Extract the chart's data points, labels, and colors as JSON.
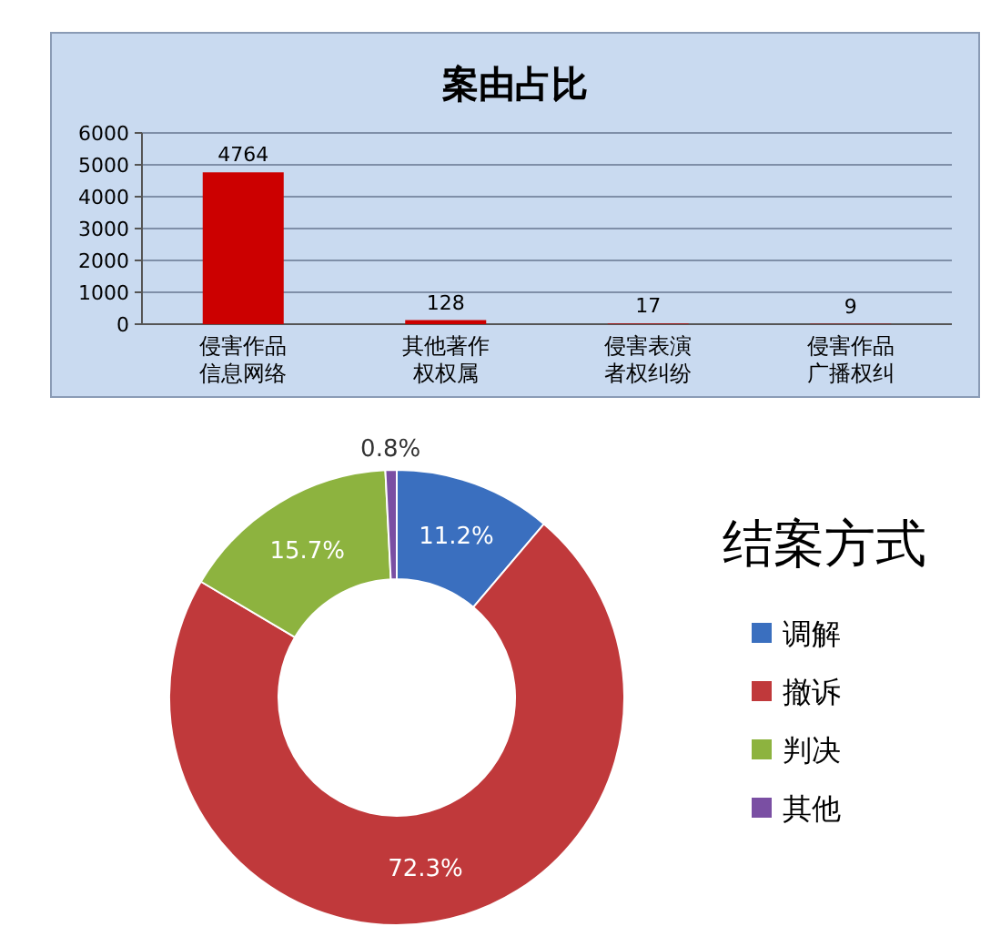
{
  "chart_data": [
    {
      "type": "bar",
      "title": "案由占比",
      "categories": [
        "侵害作品信息网络",
        "其他著作权权属",
        "侵害表演者权纠纷",
        "侵害作品广播权纠"
      ],
      "values": [
        4764,
        128,
        17,
        9
      ],
      "color": "#cc0000",
      "ylim": [
        0,
        6000
      ],
      "yticks": [
        0,
        1000,
        2000,
        3000,
        4000,
        5000,
        6000
      ],
      "grid": "y",
      "data_labels": true
    },
    {
      "type": "donut",
      "title": "结案方式",
      "categories": [
        "调解",
        "撤诉",
        "判决",
        "其他"
      ],
      "values": [
        11.2,
        72.3,
        15.7,
        0.8
      ],
      "colors": [
        "#3a6fbf",
        "#c0393b",
        "#8db33f",
        "#7a4fa3"
      ],
      "value_labels": [
        "11.2%",
        "72.3%",
        "15.7%",
        "0.8%"
      ],
      "legend": "right"
    }
  ]
}
